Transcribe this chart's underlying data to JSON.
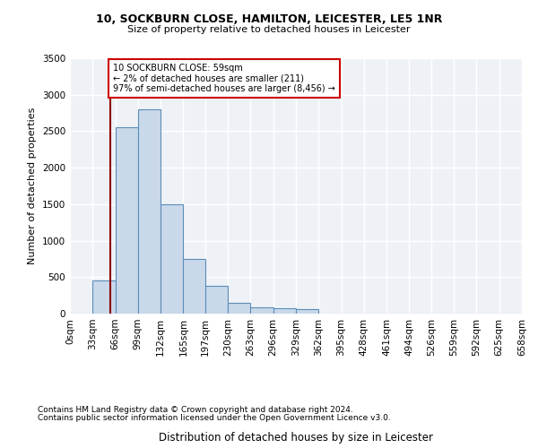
{
  "title1": "10, SOCKBURN CLOSE, HAMILTON, LEICESTER, LE5 1NR",
  "title2": "Size of property relative to detached houses in Leicester",
  "xlabel": "Distribution of detached houses by size in Leicester",
  "ylabel": "Number of detached properties",
  "footnote1": "Contains HM Land Registry data © Crown copyright and database right 2024.",
  "footnote2": "Contains public sector information licensed under the Open Government Licence v3.0.",
  "annotation_line1": "10 SOCKBURN CLOSE: 59sqm",
  "annotation_line2": "← 2% of detached houses are smaller (211)",
  "annotation_line3": "97% of semi-detached houses are larger (8,456) →",
  "property_value": 59,
  "bar_color": "#c9d9ea",
  "bar_edge_color": "#5b8db8",
  "marker_line_color": "#8b0000",
  "plot_background": "#eef2f7",
  "grid_color": "#ffffff",
  "bins": [
    0,
    33,
    66,
    99,
    132,
    165,
    197,
    230,
    263,
    296,
    329,
    362,
    395,
    428,
    461,
    494,
    526,
    559,
    592,
    625,
    658
  ],
  "bin_labels": [
    "0sqm",
    "33sqm",
    "66sqm",
    "99sqm",
    "132sqm",
    "165sqm",
    "197sqm",
    "230sqm",
    "263sqm",
    "296sqm",
    "329sqm",
    "362sqm",
    "395sqm",
    "428sqm",
    "461sqm",
    "494sqm",
    "526sqm",
    "559sqm",
    "592sqm",
    "625sqm",
    "658sqm"
  ],
  "bar_heights": [
    5,
    450,
    2550,
    2800,
    1500,
    750,
    380,
    150,
    90,
    70,
    60,
    0,
    0,
    0,
    0,
    0,
    0,
    0,
    0,
    0
  ],
  "ylim": [
    0,
    3500
  ],
  "yticks": [
    0,
    500,
    1000,
    1500,
    2000,
    2500,
    3000,
    3500
  ],
  "title1_fontsize": 9,
  "title2_fontsize": 8,
  "axis_label_fontsize": 8,
  "tick_fontsize": 7.5,
  "annot_fontsize": 7,
  "footnote_fontsize": 6.5
}
